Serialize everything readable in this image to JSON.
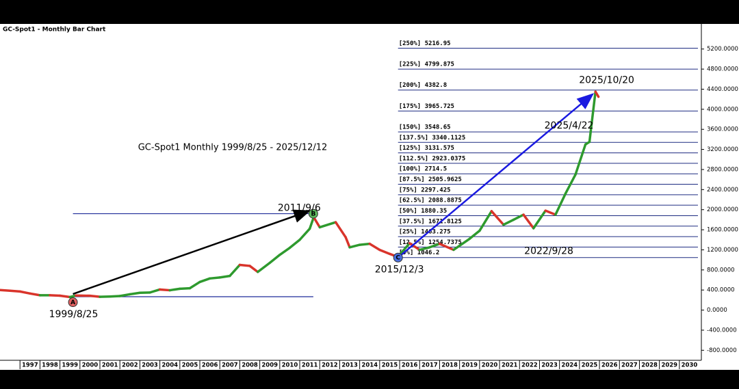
{
  "chart_data": {
    "type": "bar_line",
    "title": "GC-Spot1 - Monthly Bar Chart",
    "subtitle": "GC-Spot1 Monthly 1999/8/25 - 2025/12/12",
    "xlim": [
      1996.0,
      2031.1
    ],
    "xticks": [
      1997,
      1998,
      1999,
      2000,
      2001,
      2002,
      2003,
      2004,
      2005,
      2006,
      2007,
      2008,
      2009,
      2010,
      2011,
      2012,
      2013,
      2014,
      2015,
      2016,
      2017,
      2018,
      2019,
      2020,
      2021,
      2022,
      2023,
      2024,
      2025,
      2026,
      2027,
      2028,
      2029,
      2030
    ],
    "ylim": [
      -1000,
      5700
    ],
    "yticks": [
      {
        "value": -800,
        "label": "-800.0000"
      },
      {
        "value": -400,
        "label": "-400.0000"
      },
      {
        "value": 0,
        "label": "0.0000"
      },
      {
        "value": 400,
        "label": "400.0000"
      },
      {
        "value": 800,
        "label": "800.0000"
      },
      {
        "value": 1200,
        "label": "1200.0000"
      },
      {
        "value": 1600,
        "label": "1600.0000"
      },
      {
        "value": 2000,
        "label": "2000.0000"
      },
      {
        "value": 2400,
        "label": "2400.0000"
      },
      {
        "value": 2800,
        "label": "2800.0000"
      },
      {
        "value": 3200,
        "label": "3200.0000"
      },
      {
        "value": 3600,
        "label": "3600.0000"
      },
      {
        "value": 4000,
        "label": "4000.0000"
      },
      {
        "value": 4400,
        "label": "4400.0000"
      },
      {
        "value": 4800,
        "label": "4800.0000"
      },
      {
        "value": 5200,
        "label": "5200.0000"
      }
    ],
    "series": [
      {
        "color_up": "#2e9a2e",
        "color_down": "#d9342b",
        "x": [
          1996.0,
          1996.5,
          1997.0,
          1997.5,
          1998.0,
          1998.5,
          1999.0,
          1999.5,
          1999.8,
          2000.5,
          2001.0,
          2001.5,
          2002.0,
          2002.5,
          2003.0,
          2003.5,
          2004.0,
          2004.5,
          2005.0,
          2005.5,
          2006.0,
          2006.5,
          2007.0,
          2007.5,
          2008.0,
          2008.5,
          2008.9,
          2009.5,
          2010.0,
          2010.5,
          2011.0,
          2011.5,
          2011.7,
          2012.0,
          2012.8,
          2013.3,
          2013.5,
          2014.0,
          2014.5,
          2015.0,
          2015.5,
          2015.9,
          2016.5,
          2017.0,
          2017.5,
          2018.0,
          2018.7,
          2019.5,
          2020.0,
          2020.6,
          2021.2,
          2021.7,
          2022.2,
          2022.7,
          2023.3,
          2023.8,
          2024.3,
          2024.8,
          2025.3,
          2025.5,
          2025.8,
          2025.95
        ],
        "values": [
          400,
          385,
          370,
          330,
          295,
          295,
          287,
          260,
          290,
          285,
          265,
          270,
          280,
          315,
          345,
          350,
          410,
          395,
          425,
          435,
          560,
          630,
          650,
          680,
          900,
          880,
          760,
          940,
          1100,
          1240,
          1400,
          1620,
          1850,
          1650,
          1750,
          1450,
          1250,
          1300,
          1320,
          1200,
          1120,
          1060,
          1330,
          1200,
          1250,
          1320,
          1200,
          1420,
          1580,
          1970,
          1700,
          1800,
          1900,
          1630,
          1980,
          1900,
          2320,
          2700,
          3300,
          3350,
          4350,
          4250
        ]
      }
    ],
    "fib_levels": [
      {
        "value": 5216.95,
        "label": "[250%] 5216.95"
      },
      {
        "value": 4799.875,
        "label": "[225%] 4799.875"
      },
      {
        "value": 4382.8,
        "label": "[200%] 4382.8"
      },
      {
        "value": 3965.725,
        "label": "[175%] 3965.725"
      },
      {
        "value": 3548.65,
        "label": "[150%] 3548.65"
      },
      {
        "value": 3340.1125,
        "label": "[137.5%] 3340.1125"
      },
      {
        "value": 3131.575,
        "label": "[125%] 3131.575"
      },
      {
        "value": 2923.0375,
        "label": "[112.5%] 2923.0375"
      },
      {
        "value": 2714.5,
        "label": "[100%] 2714.5"
      },
      {
        "value": 2505.9625,
        "label": "[87.5%] 2505.9625"
      },
      {
        "value": 2297.425,
        "label": "[75%] 2297.425"
      },
      {
        "value": 2088.8875,
        "label": "[62.5%] 2088.8875"
      },
      {
        "value": 1880.35,
        "label": "[50%] 1880.35"
      },
      {
        "value": 1671.8125,
        "label": "[37.5%] 1671.8125"
      },
      {
        "value": 1463.275,
        "label": "[25%] 1463.275"
      },
      {
        "value": 1254.7375,
        "label": "[12.5%] 1254.7375"
      },
      {
        "value": 1046.2,
        "label": "[0%] 1046.2"
      }
    ],
    "pivots": [
      {
        "label": "A",
        "text": "1999/8/25",
        "x": 1999.65,
        "y": 266,
        "color": "#e06060"
      },
      {
        "label": "B",
        "text": "2011/9/6",
        "x": 2011.68,
        "y": 1920,
        "color": "#5cb85c"
      },
      {
        "label": "C",
        "text": "2015/12/3",
        "x": 2015.92,
        "y": 1046.2,
        "color": "#4a6fe0"
      }
    ],
    "annotations": [
      {
        "text": "2025/10/20",
        "x": 2025.8,
        "y": 4382.8
      },
      {
        "text": "2025/4/22",
        "x": 2025.3,
        "y": 3700
      },
      {
        "text": "2022/9/28",
        "x": 2022.75,
        "y": 1500
      }
    ]
  }
}
